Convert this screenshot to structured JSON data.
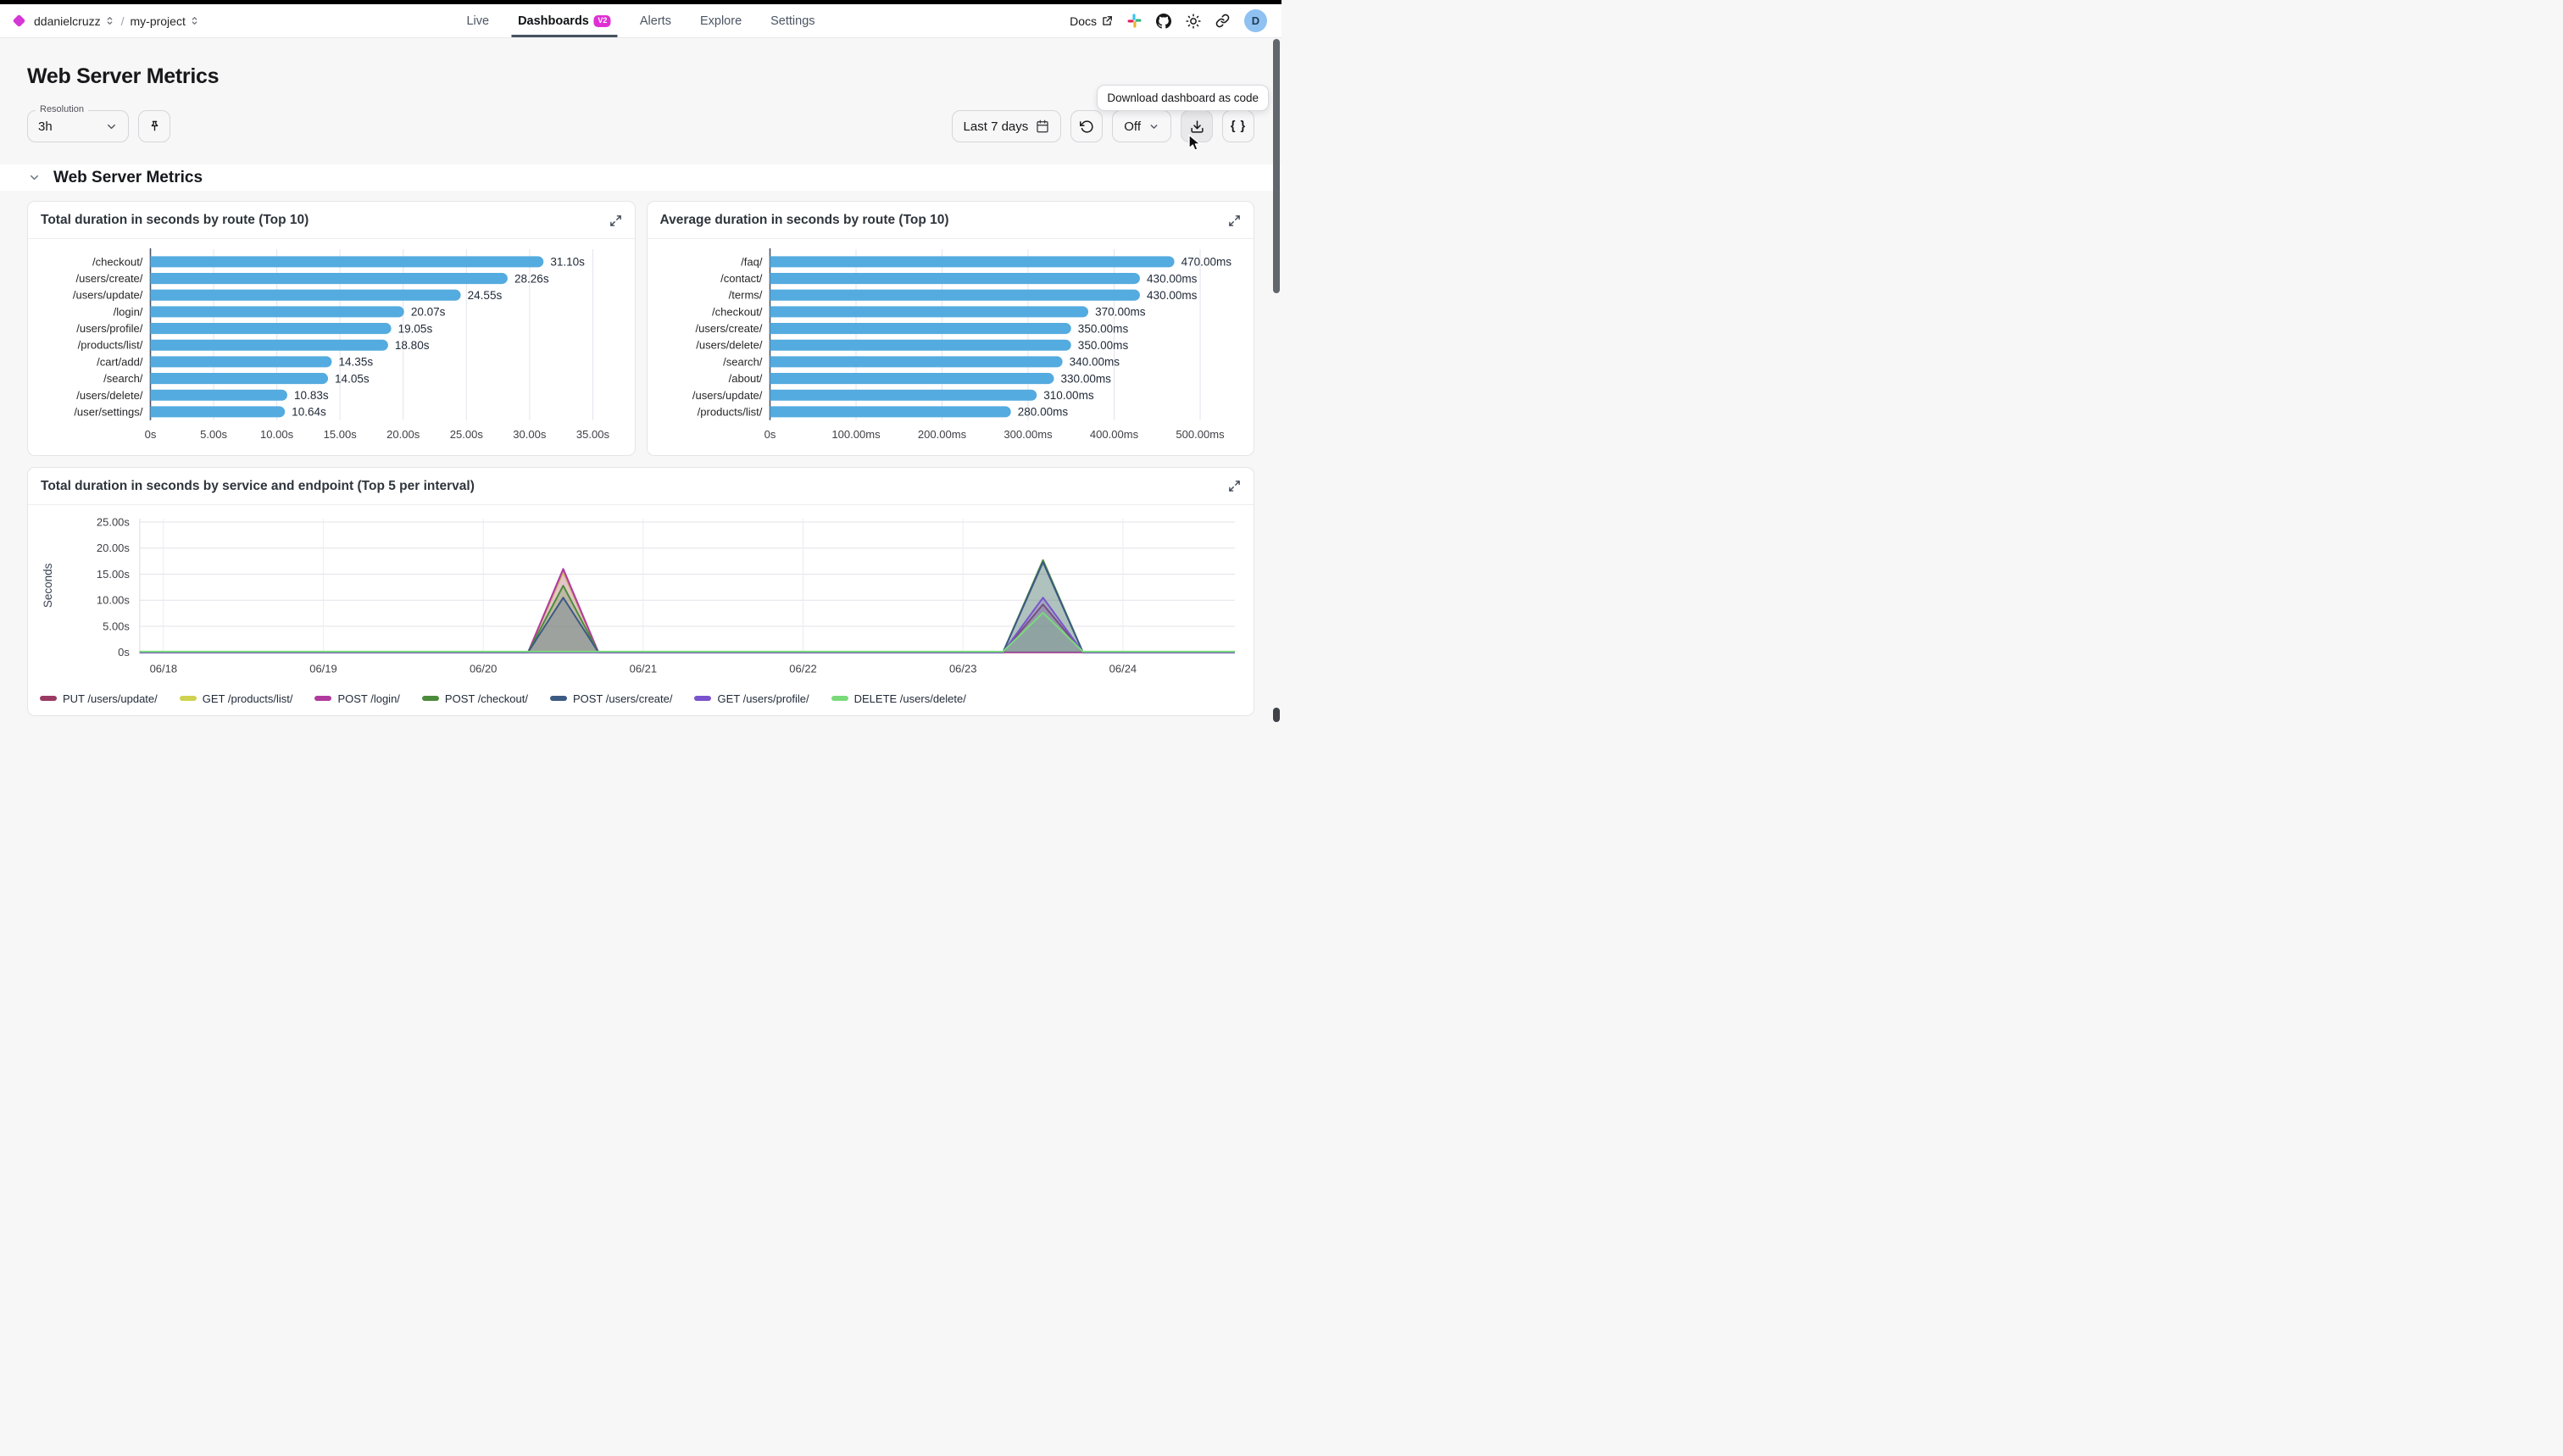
{
  "nav": {
    "org": "ddanielcruzz",
    "separator": "/",
    "project": "my-project",
    "tabs": [
      {
        "label": "Live",
        "active": false
      },
      {
        "label": "Dashboards",
        "badge": "V2",
        "active": true
      },
      {
        "label": "Alerts",
        "active": false
      },
      {
        "label": "Explore",
        "active": false
      },
      {
        "label": "Settings",
        "active": false
      }
    ],
    "docs_label": "Docs",
    "avatar_initial": "D"
  },
  "page": {
    "title": "Web Server Metrics",
    "section_title": "Web Server Metrics"
  },
  "toolbar": {
    "resolution_label": "Resolution",
    "resolution_value": "3h",
    "time_range": "Last 7 days",
    "refresh_state": "Off",
    "code_button": "{ }",
    "tooltip": "Download dashboard as code"
  },
  "colors": {
    "brand_magenta": "#df2fd4",
    "bar_blue": "#54abdf",
    "avatar_blue": "#8fc1f2",
    "active_tab_underline": "#46525f"
  },
  "chart_data": [
    {
      "type": "bar",
      "orientation": "horizontal",
      "title": "Total duration in seconds by route (Top 10)",
      "categories": [
        "/checkout/",
        "/users/create/",
        "/users/update/",
        "/login/",
        "/users/profile/",
        "/products/list/",
        "/cart/add/",
        "/search/",
        "/users/delete/",
        "/user/settings/"
      ],
      "values": [
        31.1,
        28.26,
        24.55,
        20.07,
        19.05,
        18.8,
        14.35,
        14.05,
        10.83,
        10.64
      ],
      "value_labels": [
        "31.10s",
        "28.26s",
        "24.55s",
        "20.07s",
        "19.05s",
        "18.80s",
        "14.35s",
        "14.05s",
        "10.83s",
        "10.64s"
      ],
      "x_ticks": [
        {
          "v": 0,
          "label": "0s"
        },
        {
          "v": 5,
          "label": "5.00s"
        },
        {
          "v": 10,
          "label": "10.00s"
        },
        {
          "v": 15,
          "label": "15.00s"
        },
        {
          "v": 20,
          "label": "20.00s"
        },
        {
          "v": 25,
          "label": "25.00s"
        },
        {
          "v": 30,
          "label": "30.00s"
        },
        {
          "v": 35,
          "label": "35.00s"
        }
      ],
      "xlim": [
        0,
        35.6
      ],
      "bar_color": "#54abdf",
      "grid": true
    },
    {
      "type": "bar",
      "orientation": "horizontal",
      "title": "Average duration in seconds by route (Top 10)",
      "categories": [
        "/faq/",
        "/contact/",
        "/terms/",
        "/checkout/",
        "/users/create/",
        "/users/delete/",
        "/search/",
        "/about/",
        "/users/update/",
        "/products/list/"
      ],
      "values": [
        470,
        430,
        430,
        370,
        350,
        350,
        340,
        330,
        310,
        280
      ],
      "value_labels": [
        "470.00ms",
        "430.00ms",
        "430.00ms",
        "370.00ms",
        "350.00ms",
        "350.00ms",
        "340.00ms",
        "330.00ms",
        "310.00ms",
        "280.00ms"
      ],
      "x_ticks": [
        {
          "v": 0,
          "label": "0s"
        },
        {
          "v": 100,
          "label": "100.00ms"
        },
        {
          "v": 200,
          "label": "200.00ms"
        },
        {
          "v": 300,
          "label": "300.00ms"
        },
        {
          "v": 400,
          "label": "400.00ms"
        },
        {
          "v": 500,
          "label": "500.00ms"
        }
      ],
      "xlim": [
        0,
        523
      ],
      "bar_color": "#54abdf",
      "grid": true
    },
    {
      "type": "area",
      "title": "Total duration in seconds by service and endpoint (Top 5 per interval)",
      "ylabel": "Seconds",
      "y_ticks": [
        {
          "v": 0,
          "label": "0s"
        },
        {
          "v": 5,
          "label": "5.00s"
        },
        {
          "v": 10,
          "label": "10.00s"
        },
        {
          "v": 15,
          "label": "15.00s"
        },
        {
          "v": 20,
          "label": "20.00s"
        },
        {
          "v": 25,
          "label": "25.00s"
        }
      ],
      "x_ticks": [
        {
          "v": 0,
          "label": "06/18"
        },
        {
          "v": 1,
          "label": "06/19"
        },
        {
          "v": 2,
          "label": "06/20"
        },
        {
          "v": 3,
          "label": "06/21"
        },
        {
          "v": 4,
          "label": "06/22"
        },
        {
          "v": 5,
          "label": "06/23"
        },
        {
          "v": 6,
          "label": "06/24"
        }
      ],
      "x_domain": [
        -0.15,
        6.7
      ],
      "grid": true,
      "legend_position": "bottom",
      "series": [
        {
          "name": "PUT /users/update/",
          "color": "#9a3a63",
          "points": [
            [
              -0.15,
              0
            ],
            [
              5.25,
              0
            ],
            [
              5.5,
              9.2
            ],
            [
              5.75,
              0
            ],
            [
              6.7,
              0
            ]
          ]
        },
        {
          "name": "GET /products/list/",
          "color": "#cfd24f",
          "points": [
            [
              -0.15,
              0
            ],
            [
              2.28,
              0
            ],
            [
              2.5,
              15.4
            ],
            [
              2.72,
              0
            ],
            [
              6.7,
              0
            ]
          ]
        },
        {
          "name": "POST /login/",
          "color": "#b13a9f",
          "points": [
            [
              -0.15,
              0
            ],
            [
              2.28,
              0
            ],
            [
              2.5,
              16.0
            ],
            [
              2.72,
              0
            ],
            [
              6.7,
              0
            ]
          ]
        },
        {
          "name": "POST /checkout/",
          "color": "#4c8b3b",
          "points": [
            [
              -0.15,
              0
            ],
            [
              2.28,
              0
            ],
            [
              2.5,
              12.8
            ],
            [
              2.72,
              0
            ],
            [
              5.25,
              0
            ],
            [
              5.5,
              17.7
            ],
            [
              5.75,
              0
            ],
            [
              6.7,
              0
            ]
          ]
        },
        {
          "name": "POST /users/create/",
          "color": "#3c5a84",
          "points": [
            [
              -0.15,
              0
            ],
            [
              2.28,
              0
            ],
            [
              2.5,
              10.5
            ],
            [
              2.72,
              0
            ],
            [
              5.25,
              0
            ],
            [
              5.5,
              17.3
            ],
            [
              5.75,
              0
            ],
            [
              6.7,
              0
            ]
          ]
        },
        {
          "name": "GET /users/profile/",
          "color": "#7a53cd",
          "points": [
            [
              -0.15,
              0
            ],
            [
              5.25,
              0
            ],
            [
              5.5,
              10.5
            ],
            [
              5.75,
              0
            ],
            [
              6.7,
              0
            ]
          ]
        },
        {
          "name": "DELETE /users/delete/",
          "color": "#79da79",
          "points": [
            [
              -0.15,
              0.15
            ],
            [
              5.25,
              0.15
            ],
            [
              5.5,
              7.6
            ],
            [
              5.75,
              0.15
            ],
            [
              6.7,
              0.15
            ]
          ]
        }
      ]
    }
  ]
}
